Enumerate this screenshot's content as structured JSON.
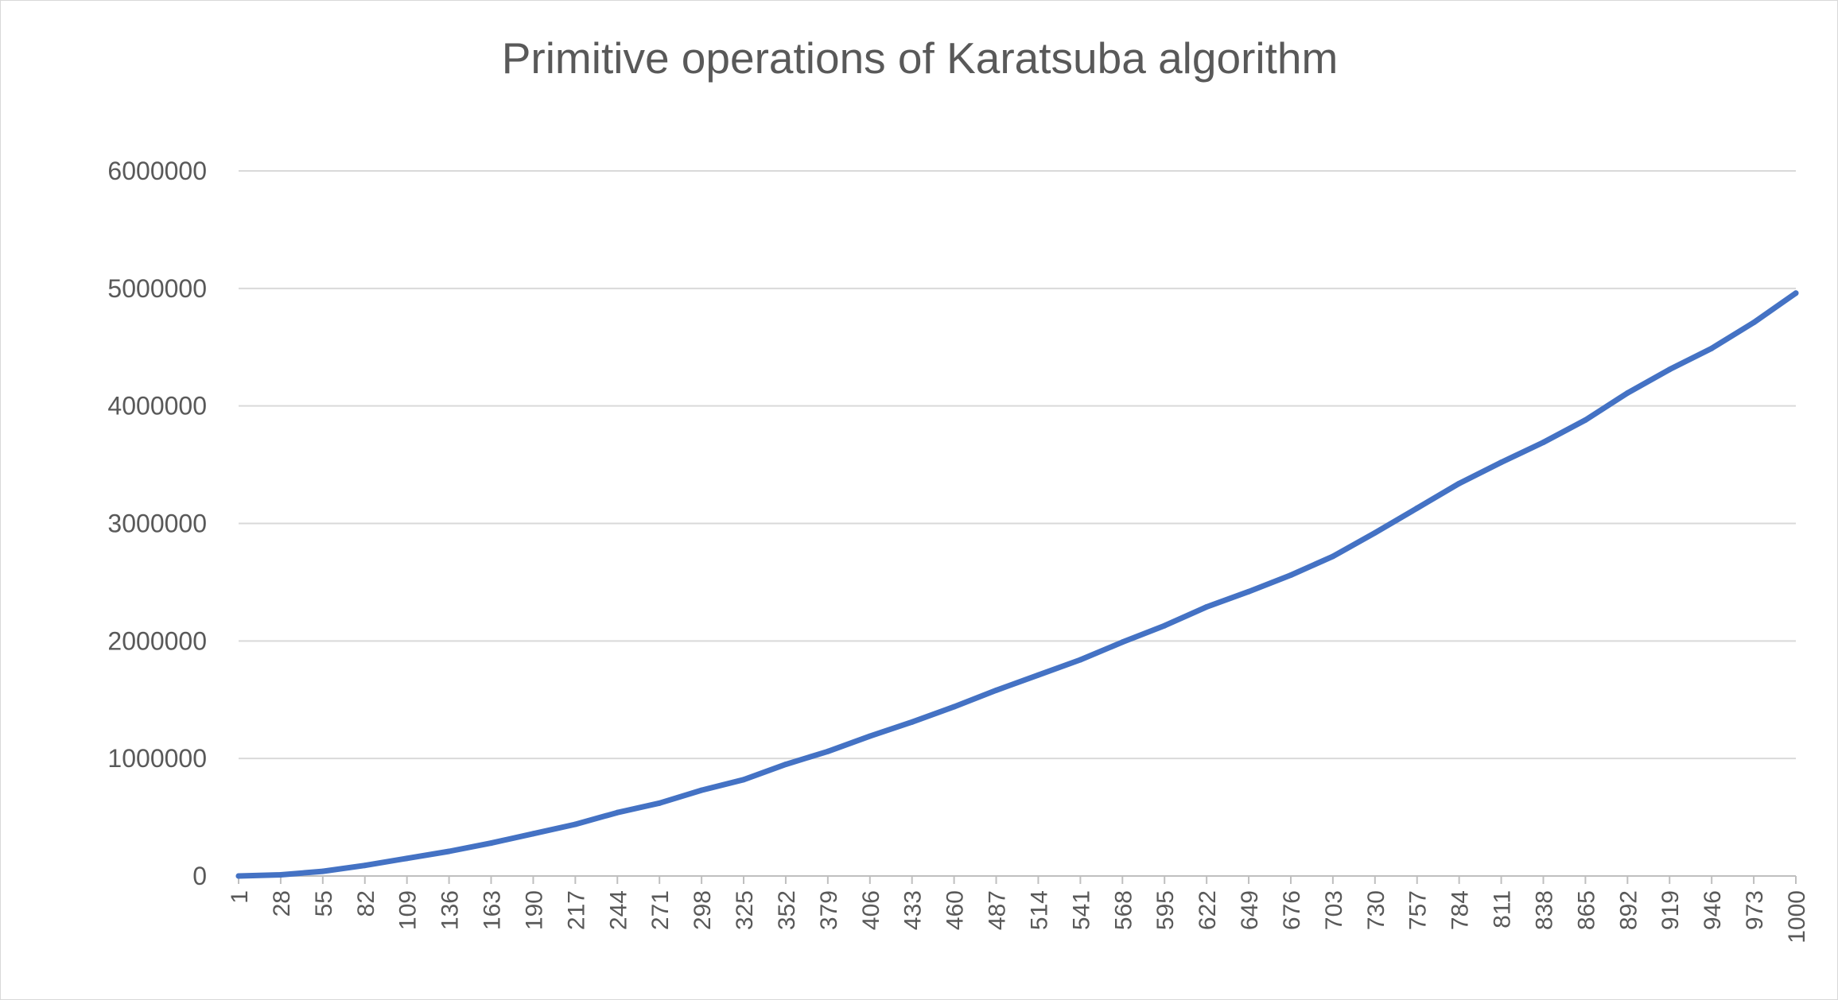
{
  "chart_data": {
    "type": "line",
    "title": "Primitive operations of Karatsuba algorithm",
    "xlabel": "",
    "ylabel": "",
    "ylim": [
      0,
      6000000
    ],
    "y_ticks": [
      0,
      1000000,
      2000000,
      3000000,
      4000000,
      5000000,
      6000000
    ],
    "y_tick_labels": [
      "0",
      "1000000",
      "2000000",
      "3000000",
      "4000000",
      "5000000",
      "6000000"
    ],
    "x_tick_labels": [
      "1",
      "28",
      "55",
      "82",
      "109",
      "136",
      "163",
      "190",
      "217",
      "244",
      "271",
      "298",
      "325",
      "352",
      "379",
      "406",
      "433",
      "460",
      "487",
      "514",
      "541",
      "568",
      "595",
      "622",
      "649",
      "676",
      "703",
      "730",
      "757",
      "784",
      "811",
      "838",
      "865",
      "892",
      "919",
      "946",
      "973",
      "1000"
    ],
    "xlim": [
      1,
      1000
    ],
    "grid": true,
    "legend": "none",
    "line_color": "#4472c4",
    "grid_color": "#d9d9d9",
    "series": [
      {
        "x": [
          1,
          28,
          55,
          82,
          109,
          136,
          163,
          190,
          217,
          244,
          271,
          298,
          325,
          352,
          379,
          406,
          433,
          460,
          487,
          514,
          541,
          568,
          595,
          622,
          649,
          676,
          703,
          730,
          757,
          784,
          811,
          838,
          865,
          892,
          919,
          946,
          973,
          1000
        ],
        "values": [
          0,
          10000,
          40000,
          90000,
          150000,
          210000,
          280000,
          360000,
          440000,
          540000,
          620000,
          730000,
          820000,
          950000,
          1060000,
          1190000,
          1310000,
          1440000,
          1580000,
          1710000,
          1840000,
          1990000,
          2130000,
          2290000,
          2420000,
          2560000,
          2720000,
          2920000,
          3130000,
          3340000,
          3520000,
          3690000,
          3880000,
          4110000,
          4310000,
          4490000,
          4710000,
          4960000
        ]
      }
    ]
  }
}
